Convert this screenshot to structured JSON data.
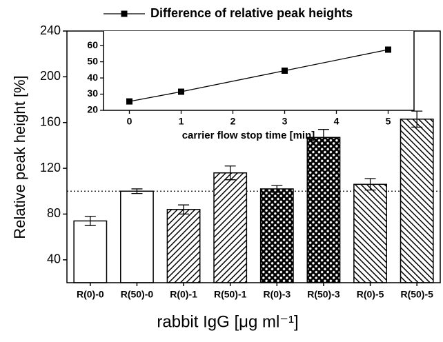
{
  "chart_data": [
    {
      "type": "bar",
      "categories": [
        "R(0)-0",
        "R(50)-0",
        "R(0)-1",
        "R(50)-1",
        "R(0)-3",
        "R(50)-3",
        "R(0)-5",
        "R(50)-5"
      ],
      "values": [
        74,
        100,
        84,
        116,
        102,
        147,
        106,
        163
      ],
      "errors": [
        4,
        2,
        4,
        6,
        3,
        7,
        5,
        7
      ],
      "patterns": [
        "none",
        "none",
        "diagonal",
        "diagonal",
        "cross",
        "cross",
        "backslash",
        "backslash"
      ],
      "color": "#000000",
      "ylim": [
        20,
        240
      ],
      "yticks": [
        40,
        80,
        120,
        160,
        200,
        240
      ],
      "reference_line": 100,
      "ylabel": "Relative peak height [%]",
      "xlabel": "rabbit IgG [μg ml⁻¹]"
    },
    {
      "type": "line",
      "x": [
        0,
        1,
        3,
        5
      ],
      "series": [
        {
          "name": "Difference of relative peak heights",
          "color": "#000000",
          "values": [
            25.5,
            31.5,
            44.5,
            57.5
          ]
        }
      ],
      "xlim": [
        -0.5,
        5.5
      ],
      "xticks": [
        0,
        1,
        2,
        3,
        4,
        5
      ],
      "ylim": [
        20,
        69
      ],
      "yticks": [
        20,
        30,
        40,
        50,
        60
      ],
      "xlabel": "carrier flow stop time [min]"
    }
  ]
}
